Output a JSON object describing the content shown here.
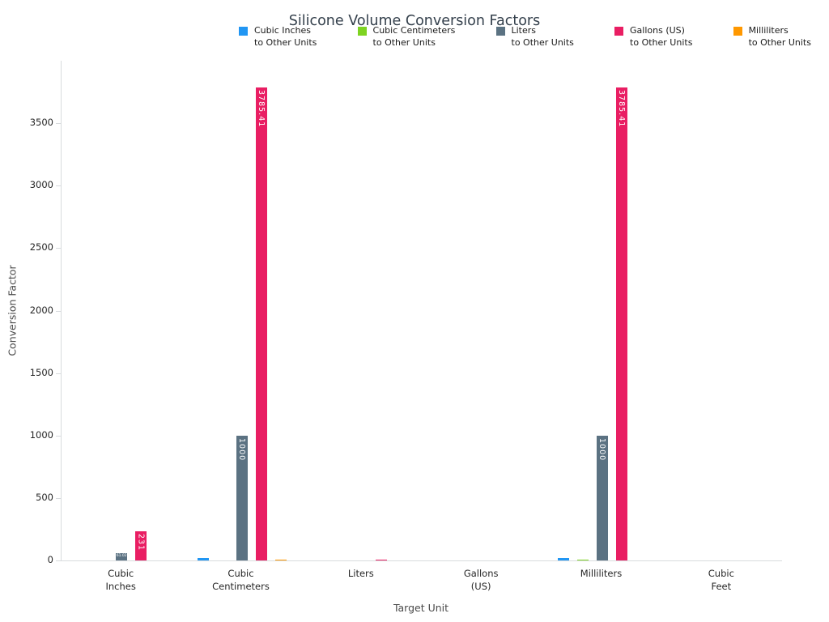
{
  "chart_data": {
    "type": "bar",
    "title": "Silicone Volume Conversion Factors",
    "xlabel": "Target Unit",
    "ylabel": "Conversion Factor",
    "ylim": [
      0,
      4000
    ],
    "yticks": [
      0,
      500,
      1000,
      1500,
      2000,
      2500,
      3000,
      3500
    ],
    "grid": false,
    "legend_position": "top",
    "label_min_value": 50,
    "categories": [
      [
        "Cubic",
        "Inches"
      ],
      [
        "Cubic",
        "Centimeters"
      ],
      [
        "Liters"
      ],
      [
        "Gallons",
        "(US)"
      ],
      [
        "Milliliters"
      ],
      [
        "Cubic",
        "Feet"
      ]
    ],
    "series": [
      {
        "name": "Cubic Inches to Other Units",
        "legend": [
          "Cubic Inches",
          "to Other Units"
        ],
        "color": "#2196F3",
        "values": [
          null,
          16.387,
          0.0164,
          0.0043,
          16.387,
          0.00058
        ]
      },
      {
        "name": "Cubic Centimeters to Other Units",
        "legend": [
          "Cubic Centimeters",
          "to Other Units"
        ],
        "color": "#7ED321",
        "values": [
          0.061,
          null,
          0.001,
          0.00026,
          1,
          3.5e-05
        ]
      },
      {
        "name": "Liters to Other Units",
        "legend": [
          "Liters",
          "to Other Units"
        ],
        "color": "#5B7282",
        "values": [
          61.02,
          1000,
          null,
          0.2642,
          1000,
          0.0353
        ]
      },
      {
        "name": "Gallons (US) to Other Units",
        "legend": [
          "Gallons (US)",
          "to Other Units"
        ],
        "color": "#E91E63",
        "values": [
          231,
          3785.41,
          3.785,
          null,
          3785.41,
          0.1337
        ]
      },
      {
        "name": "Milliliters to Other Units",
        "legend": [
          "Milliliters",
          "to Other Units"
        ],
        "color": "#FF9800",
        "values": [
          0.061,
          1,
          0.001,
          0.00026,
          null,
          3.5e-05
        ]
      }
    ],
    "visible_bar_value_labels": [
      "61.02",
      "1000",
      "3785.41",
      "231",
      "1000",
      "3785.41"
    ]
  }
}
